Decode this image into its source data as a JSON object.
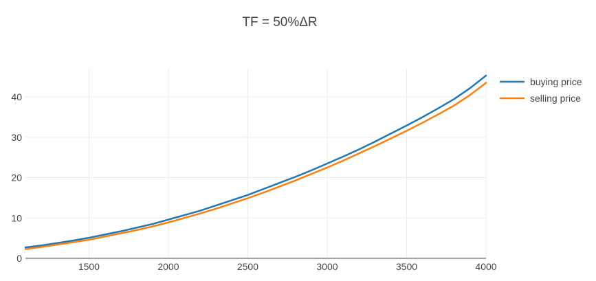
{
  "chart_data": {
    "type": "line",
    "title": "TF = 50%ΔR",
    "xlabel": "",
    "ylabel": "",
    "xlim": [
      1100,
      4000
    ],
    "ylim": [
      0,
      47
    ],
    "x_ticks": [
      1500,
      2000,
      2500,
      3000,
      3500,
      4000
    ],
    "y_ticks": [
      0,
      10,
      20,
      30,
      40
    ],
    "grid": true,
    "legend_position": "top-right",
    "x": [
      1100,
      1200,
      1300,
      1400,
      1500,
      1600,
      1700,
      1800,
      1900,
      2000,
      2100,
      2200,
      2300,
      2400,
      2500,
      2600,
      2700,
      2800,
      2900,
      3000,
      3100,
      3200,
      3300,
      3400,
      3500,
      3600,
      3700,
      3800,
      3900,
      4000
    ],
    "series": [
      {
        "name": "buying price",
        "color": "#1f77b4",
        "values": [
          2.7,
          3.2,
          3.8,
          4.4,
          5.1,
          5.9,
          6.7,
          7.6,
          8.5,
          9.6,
          10.7,
          11.8,
          13.1,
          14.4,
          15.7,
          17.2,
          18.7,
          20.2,
          21.8,
          23.5,
          25.2,
          27.0,
          28.9,
          30.9,
          32.9,
          35.0,
          37.2,
          39.5,
          42.2,
          45.3
        ]
      },
      {
        "name": "selling price",
        "color": "#ff7f0e",
        "values": [
          2.3,
          2.8,
          3.4,
          4.0,
          4.6,
          5.4,
          6.2,
          7.0,
          7.9,
          8.9,
          10.0,
          11.1,
          12.3,
          13.6,
          14.9,
          16.3,
          17.8,
          19.3,
          20.9,
          22.5,
          24.2,
          26.0,
          27.8,
          29.7,
          31.6,
          33.6,
          35.7,
          37.9,
          40.5,
          43.5
        ]
      }
    ]
  }
}
